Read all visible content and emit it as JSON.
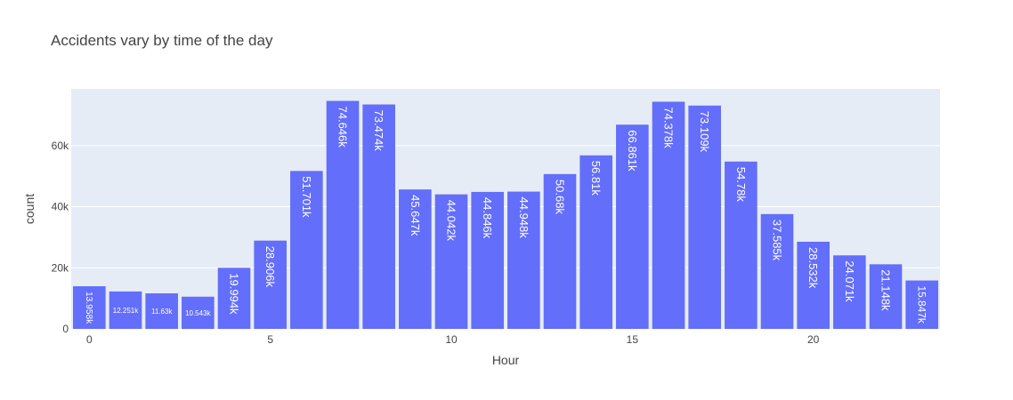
{
  "chart_data": {
    "type": "bar",
    "title": "Accidents vary by time of the day",
    "xlabel": "Hour",
    "ylabel": "count",
    "x": [
      0,
      1,
      2,
      3,
      4,
      5,
      6,
      7,
      8,
      9,
      10,
      11,
      12,
      13,
      14,
      15,
      16,
      17,
      18,
      19,
      20,
      21,
      22,
      23
    ],
    "values": [
      13958,
      12251,
      11630,
      10543,
      19994,
      28906,
      51701,
      74646,
      73474,
      45647,
      44042,
      44846,
      44948,
      50680,
      56810,
      66861,
      74378,
      73109,
      54780,
      37585,
      28532,
      24071,
      21148,
      15847
    ],
    "data_labels": [
      "13.958k",
      "12.251k",
      "11.63k",
      "10.543k",
      "19.994k",
      "28.906k",
      "51.701k",
      "74.646k",
      "73.474k",
      "45.647k",
      "44.042k",
      "44.846k",
      "44.948k",
      "50.68k",
      "56.81k",
      "66.861k",
      "74.378k",
      "73.109k",
      "54.78k",
      "37.585k",
      "28.532k",
      "24.071k",
      "21.148k",
      "15.847k"
    ],
    "x_ticks": [
      0,
      5,
      10,
      15,
      20
    ],
    "x_tick_labels": [
      "0",
      "5",
      "10",
      "15",
      "20"
    ],
    "y_ticks": [
      0,
      20000,
      40000,
      60000
    ],
    "y_tick_labels": [
      "0",
      "20k",
      "40k",
      "60k"
    ],
    "xlim": [
      -0.5,
      23.5
    ],
    "ylim": [
      0,
      78575
    ],
    "grid": true,
    "legend": "none",
    "colors": {
      "bar": "#636efa",
      "plot_bg": "#e5ecf6",
      "grid": "#ffffff"
    }
  }
}
